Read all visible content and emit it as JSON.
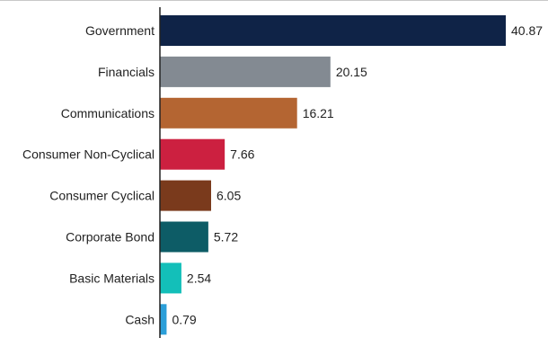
{
  "chart_data": {
    "type": "bar",
    "orientation": "horizontal",
    "categories": [
      "Government",
      "Financials",
      "Communications",
      "Consumer Non-Cyclical",
      "Consumer Cyclical",
      "Corporate Bond",
      "Basic Materials",
      "Cash"
    ],
    "values": [
      40.87,
      20.15,
      16.21,
      7.66,
      6.05,
      5.72,
      2.54,
      0.79
    ],
    "value_labels": [
      "40.87",
      "20.15",
      "16.21",
      "7.66",
      "6.05",
      "5.72",
      "2.54",
      "0.79"
    ],
    "colors": [
      "#0f2347",
      "#838a92",
      "#b46532",
      "#cc2040",
      "#7a3a1c",
      "#0d5c66",
      "#13bfb9",
      "#2b9fd9"
    ],
    "title": "",
    "xlabel": "",
    "ylabel": "",
    "xlim": [
      0,
      40.87
    ],
    "grid": false,
    "legend": "none"
  }
}
